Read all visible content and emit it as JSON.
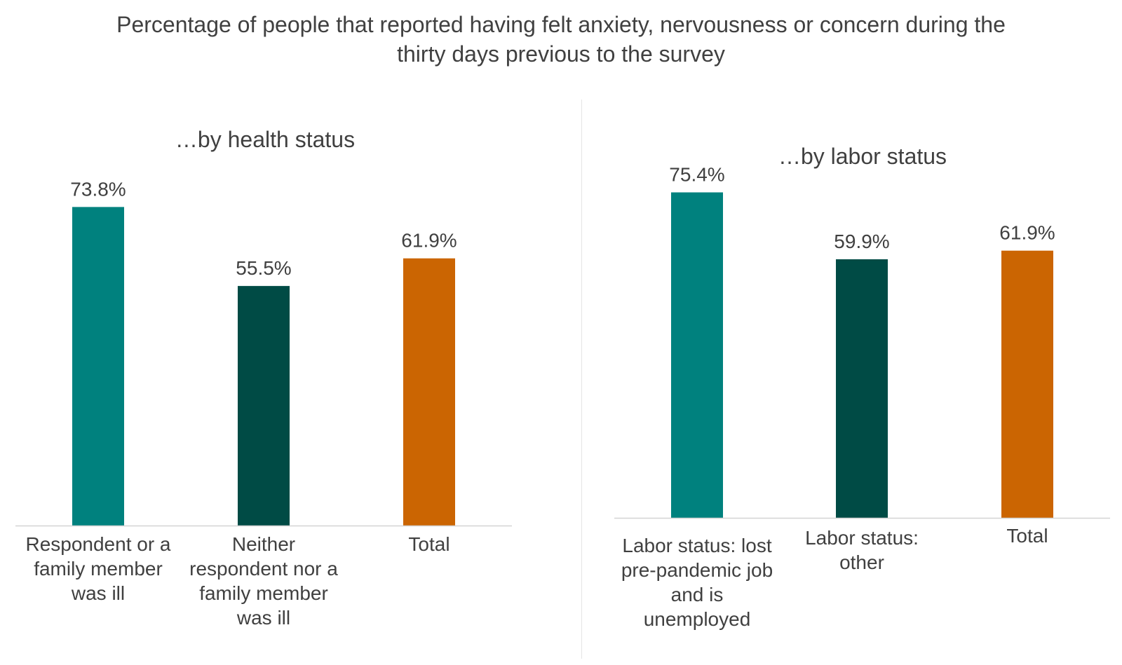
{
  "title_lines": [
    "Percentage of people that reported having felt anxiety, nervousness or concern during the",
    "thirty days previous to the survey"
  ],
  "colors": {
    "teal": "#00817e",
    "dark_teal": "#004b45",
    "orange": "#cb6502",
    "axis": "#d4d4d4",
    "text": "#404040"
  },
  "chart_data": [
    {
      "type": "bar",
      "title": "…by health status",
      "categories": [
        "Respondent or a family member was ill",
        "Neither respondent nor a family member was ill",
        "Total"
      ],
      "category_lines": [
        [
          "Respondent or a",
          "family member",
          "was ill"
        ],
        [
          "Neither",
          "respondent nor a",
          "family member",
          "was ill"
        ],
        [
          "Total"
        ]
      ],
      "values": [
        73.8,
        55.5,
        61.9
      ],
      "data_labels": [
        "73.8%",
        "55.5%",
        "61.9%"
      ],
      "bar_colors": [
        "#00817e",
        "#004b45",
        "#cb6502"
      ],
      "ylim": [
        0,
        100
      ],
      "xlabel": "",
      "ylabel": "",
      "grid": false,
      "legend": "none"
    },
    {
      "type": "bar",
      "title": "…by labor status",
      "categories": [
        "Labor status: lost pre-pandemic job and is unemployed",
        "Labor status: other",
        "Total"
      ],
      "category_lines": [
        [
          "Labor status: lost",
          "pre-pandemic job",
          "and is",
          "unemployed"
        ],
        [
          "Labor status:",
          "other"
        ],
        [
          "Total"
        ]
      ],
      "values": [
        75.4,
        59.9,
        61.9
      ],
      "data_labels": [
        "75.4%",
        "59.9%",
        "61.9%"
      ],
      "bar_colors": [
        "#00817e",
        "#004b45",
        "#cb6502"
      ],
      "ylim": [
        0,
        100
      ],
      "xlabel": "",
      "ylabel": "",
      "grid": false,
      "legend": "none"
    }
  ]
}
